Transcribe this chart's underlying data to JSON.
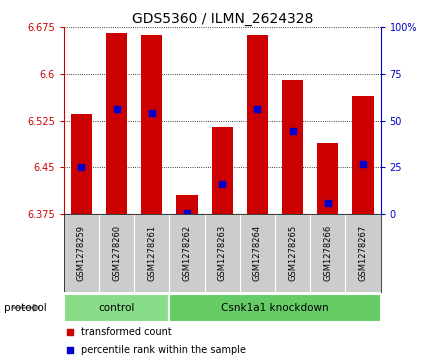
{
  "title": "GDS5360 / ILMN_2624328",
  "samples": [
    "GSM1278259",
    "GSM1278260",
    "GSM1278261",
    "GSM1278262",
    "GSM1278263",
    "GSM1278264",
    "GSM1278265",
    "GSM1278266",
    "GSM1278267"
  ],
  "bar_tops": [
    6.535,
    6.665,
    6.663,
    6.405,
    6.515,
    6.663,
    6.59,
    6.49,
    6.565
  ],
  "bar_base": 6.375,
  "blue_dot_values": [
    6.45,
    6.543,
    6.538,
    6.377,
    6.423,
    6.543,
    6.508,
    6.393,
    6.455
  ],
  "ylim": [
    6.375,
    6.675
  ],
  "yticks": [
    6.375,
    6.45,
    6.525,
    6.6,
    6.675
  ],
  "ytick_labels": [
    "6.375",
    "6.45",
    "6.525",
    "6.6",
    "6.675"
  ],
  "right_yticks": [
    0,
    25,
    50,
    75,
    100
  ],
  "right_ytick_labels": [
    "0",
    "25",
    "50",
    "75",
    "100%"
  ],
  "right_ylim": [
    0,
    100
  ],
  "bar_color": "#cc0000",
  "dot_color": "#0000cc",
  "protocol_groups": [
    {
      "label": "control",
      "start": 0,
      "end": 3,
      "color": "#88dd88"
    },
    {
      "label": "Csnk1a1 knockdown",
      "start": 3,
      "end": 9,
      "color": "#66cc66"
    }
  ],
  "protocol_label": "protocol",
  "legend_items": [
    {
      "label": "transformed count",
      "color": "#cc0000"
    },
    {
      "label": "percentile rank within the sample",
      "color": "#0000cc"
    }
  ],
  "title_fontsize": 10,
  "tick_fontsize": 7,
  "bar_color_left": "#cc0000",
  "bar_color_right": "#0000cc",
  "bar_width": 0.6,
  "background_color": "#ffffff",
  "label_area_bg": "#cccccc"
}
